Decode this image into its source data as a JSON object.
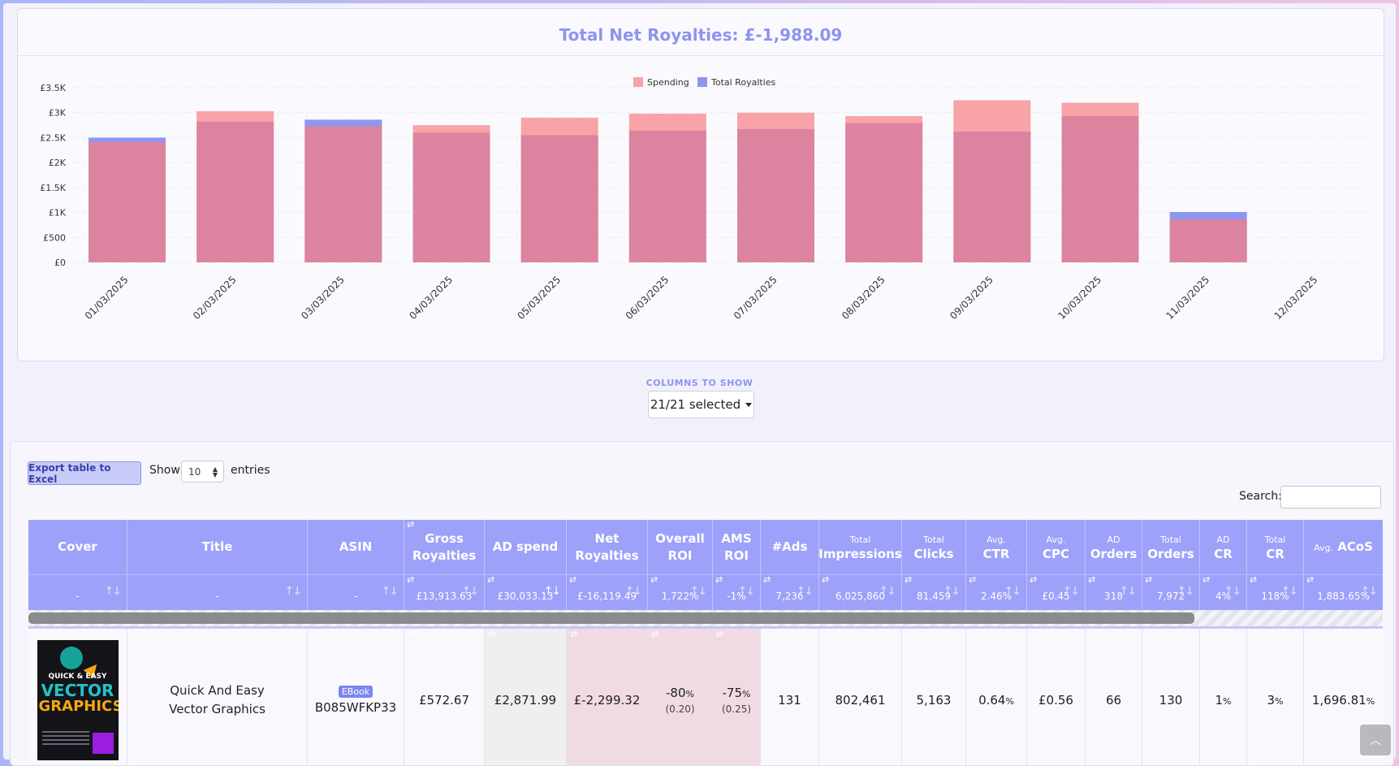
{
  "chart_data": {
    "type": "bar",
    "title": "Total Net Royalties: £-1,988.09",
    "categories": [
      "01/03/2025",
      "02/03/2025",
      "03/03/2025",
      "04/03/2025",
      "05/03/2025",
      "06/03/2025",
      "07/03/2025",
      "08/03/2025",
      "09/03/2025",
      "10/03/2025",
      "11/03/2025",
      "12/03/2025"
    ],
    "series": [
      {
        "name": "Spending",
        "color": "#f8a3a8",
        "values": [
          2410,
          3030,
          2730,
          2750,
          2900,
          2980,
          3000,
          2930,
          3250,
          3200,
          860,
          0
        ]
      },
      {
        "name": "Total Royalties",
        "color": "#8e96f0",
        "values": [
          2500,
          2820,
          2860,
          2600,
          2550,
          2640,
          2670,
          2790,
          2620,
          2930,
          1010,
          0
        ]
      }
    ],
    "y_ticks": [
      "£0",
      "£500",
      "£1K",
      "£1.5K",
      "£2K",
      "£2.5K",
      "£3K",
      "£3.5K"
    ],
    "ylim": [
      0,
      3500
    ],
    "legend": "top-center",
    "grid": true,
    "bars": "overlapped"
  },
  "columns_label": "COLUMNS TO SHOW",
  "columns_select": "21/21 selected",
  "controls": {
    "export": "Export table to Excel",
    "show": "Show",
    "entries_value": "10",
    "entries": "entries",
    "search": "Search:"
  },
  "header": {
    "cover": "Cover",
    "title": "Title",
    "asin": "ASIN",
    "gross": "Gross Royalties",
    "adspend": "AD spend",
    "net": "Net Royalties",
    "overall_roi": "Overall ROI",
    "ams_roi": "AMS ROI",
    "ads": "#Ads",
    "impr_sm": "Total",
    "impr_big": "Impressions",
    "clicks_sm": "Total",
    "clicks_big": "Clicks",
    "ctr_sm": "Avg.",
    "ctr_big": "CTR",
    "cpc_sm": "Avg.",
    "cpc_big": "CPC",
    "adorders_sm": "AD",
    "adorders_big": "Orders",
    "orders_sm": "Total",
    "orders_big": "Orders",
    "adcr_sm": "AD",
    "adcr_big": "CR",
    "totcr_sm": "Total",
    "totcr_big": "CR",
    "acos_sm": "Avg.",
    "acos_big": "ACoS"
  },
  "filters": {
    "cover": "-",
    "title": "-",
    "asin": "-",
    "gross": "£13,913.63",
    "adspend": "£30,033.13",
    "net": "£-16,119.49",
    "overall_roi": "1,722%",
    "ams_roi": "-1%",
    "ads": "7,236",
    "impr": "6,025,860",
    "clicks": "81,459",
    "ctr": "2.46%",
    "cpc": "£0.45",
    "adorders": "318",
    "orders": "7,972",
    "adcr": "4%",
    "totcr": "118%",
    "acos": "1,883.65%"
  },
  "row": {
    "cover_title": "QUICK & EASY",
    "cover_word1": "VECTOR",
    "cover_word2": "GRAPHICS",
    "title": "Quick And Easy Vector Graphics",
    "badge": "EBook",
    "asin": "B085WFKP33",
    "gross": "£572.67",
    "adspend": "£2,871.99",
    "net": "£-2,299.32",
    "overall_roi": "-80",
    "overall_roi_unit": "%",
    "overall_roi_sub": "(0.20)",
    "ams_roi": "-75",
    "ams_roi_unit": "%",
    "ams_roi_sub": "(0.25)",
    "ads": "131",
    "impr": "802,461",
    "clicks": "5,163",
    "ctr": "0.64",
    "ctr_unit": "%",
    "cpc": "£0.56",
    "adorders": "66",
    "orders": "130",
    "adcr": "1",
    "adcr_unit": "%",
    "totcr": "3",
    "totcr_unit": "%",
    "acos": "1,696.81",
    "acos_unit": "%"
  }
}
